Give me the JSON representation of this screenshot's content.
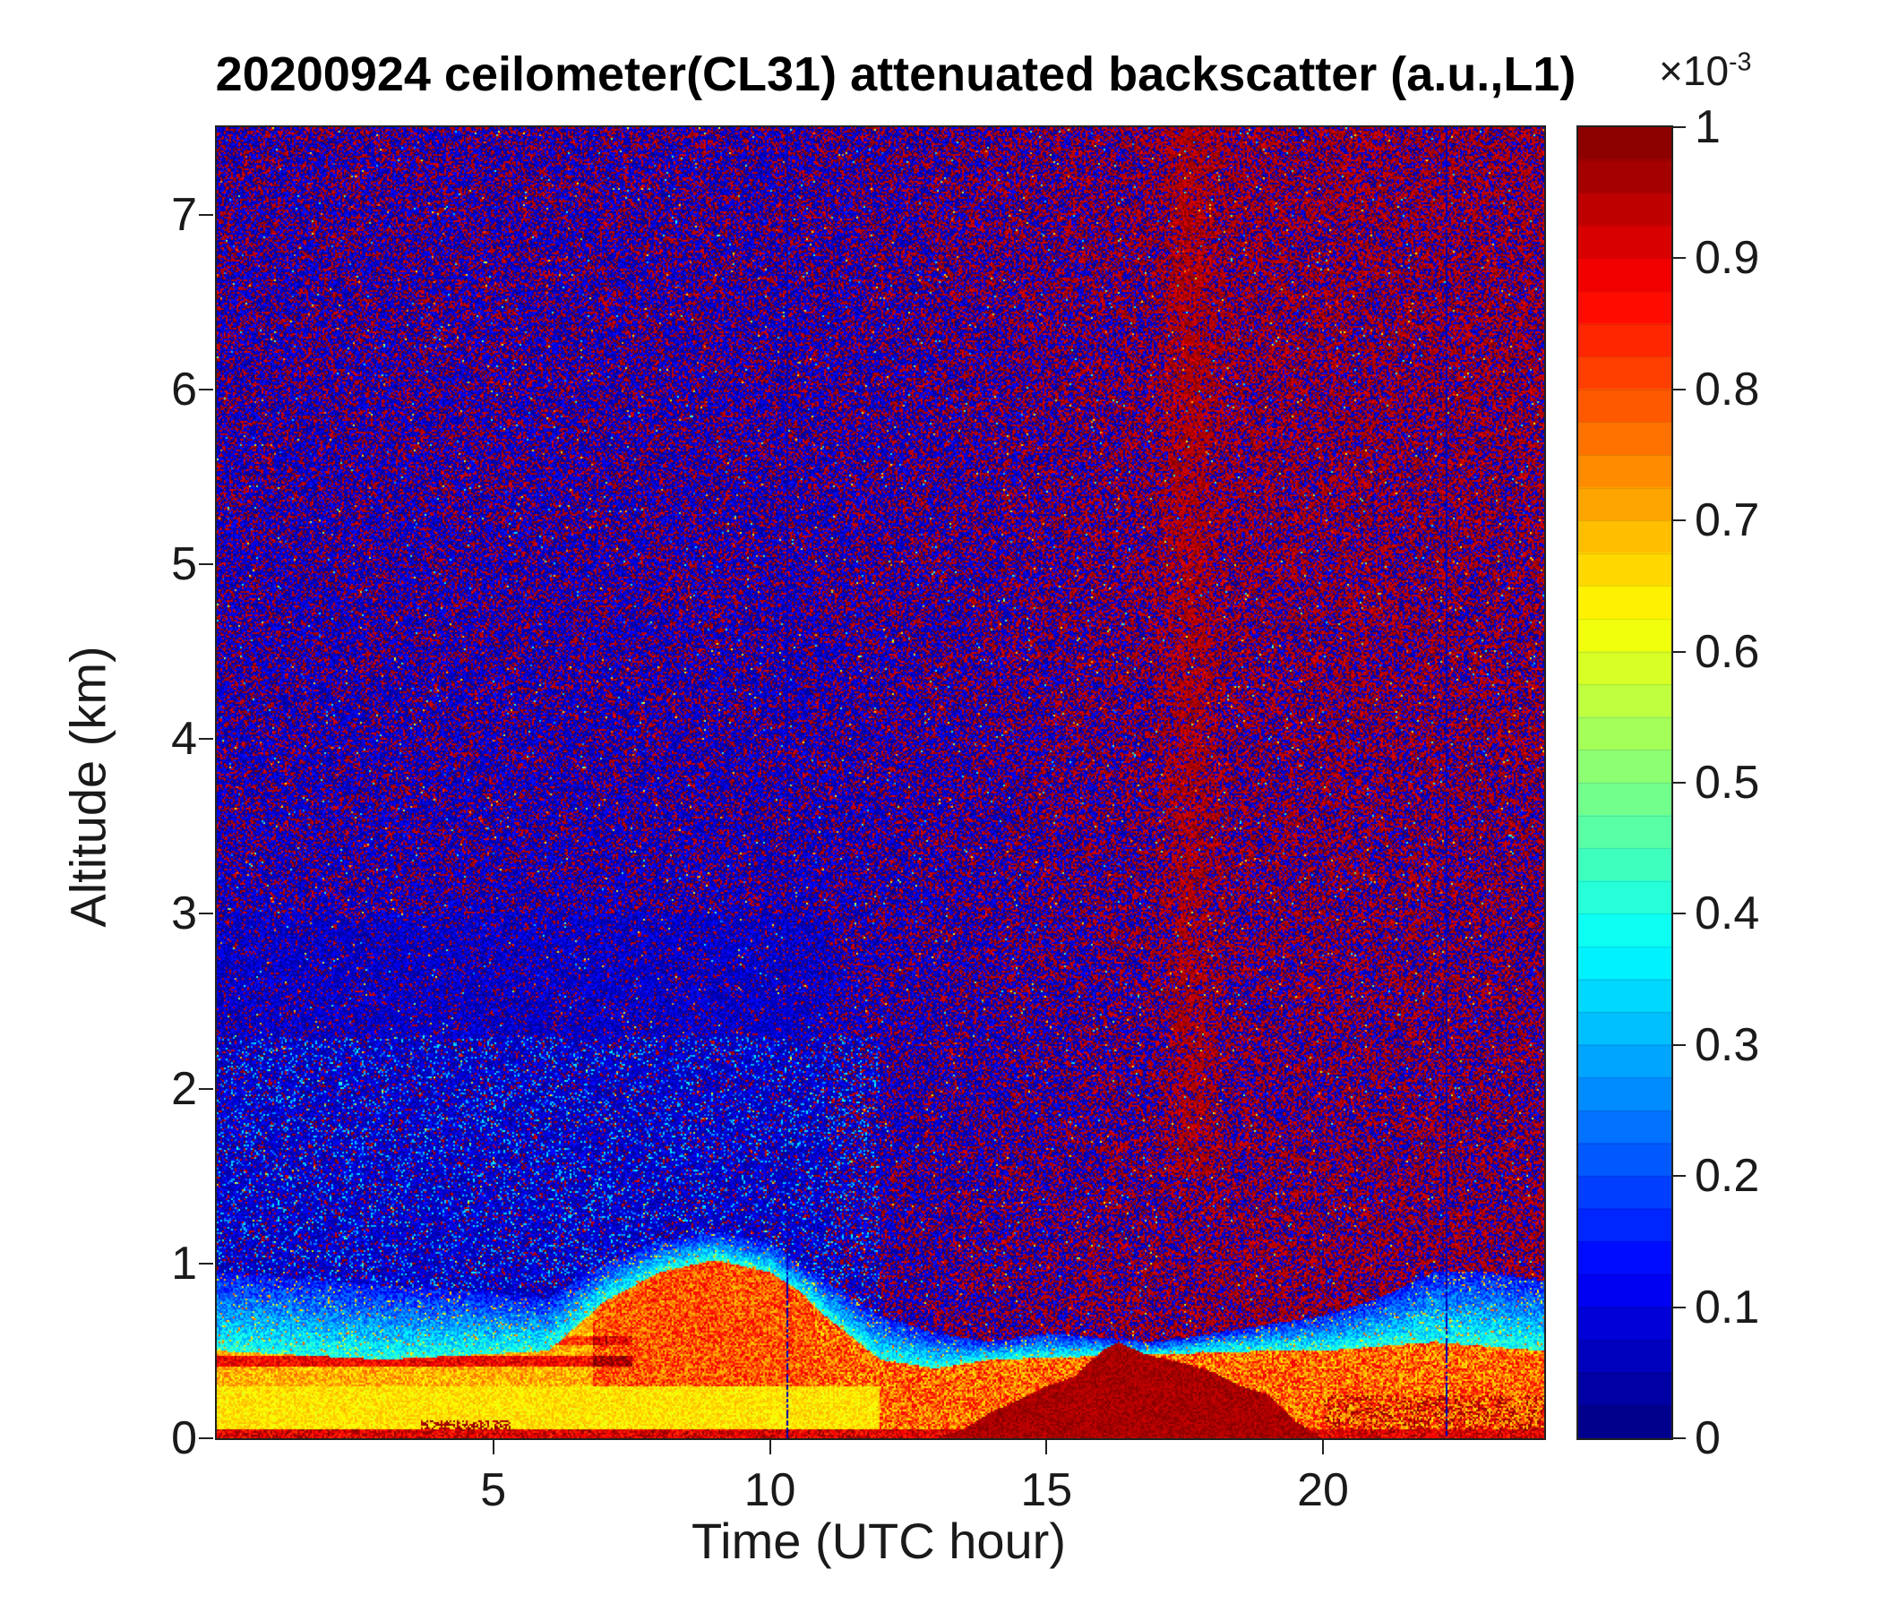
{
  "chart_data": {
    "type": "heatmap",
    "title": "20200924 ceilometer(CL31) attenuated backscatter (a.u.,L1)",
    "xlabel": "Time (UTC hour)",
    "ylabel": "Altitude (km)",
    "x_range": [
      0,
      24
    ],
    "y_range": [
      0,
      7.5
    ],
    "x_ticks": [
      5,
      10,
      15,
      20
    ],
    "y_ticks": [
      0,
      1,
      2,
      3,
      4,
      5,
      6,
      7
    ],
    "grid": false,
    "colorbar": {
      "label_base": "×10",
      "label_exp": "-3",
      "colormap": "jet",
      "value_range": [
        0,
        0.001
      ],
      "ticks": [
        0,
        0.1,
        0.2,
        0.3,
        0.4,
        0.5,
        0.6,
        0.7,
        0.8,
        0.9,
        1
      ],
      "tick_labels": [
        "0",
        "0.1",
        "0.2",
        "0.3",
        "0.4",
        "0.5",
        "0.6",
        "0.7",
        "0.8",
        "0.9",
        "1"
      ],
      "position": "right"
    },
    "layers": {
      "strong_layer_top": {
        "hours": [
          0,
          3,
          6,
          7,
          8,
          9,
          10,
          10.5,
          11,
          12,
          13,
          14,
          19,
          20,
          22,
          24
        ],
        "km": [
          0.5,
          0.45,
          0.5,
          0.78,
          0.95,
          1.02,
          0.95,
          0.85,
          0.7,
          0.45,
          0.4,
          0.45,
          0.5,
          0.5,
          0.55,
          0.5
        ]
      },
      "diffuse_layer_top": {
        "hours": [
          0,
          2,
          4,
          6,
          7,
          8,
          9,
          10,
          11,
          12,
          13,
          14,
          15,
          17,
          19,
          20,
          21,
          22,
          23,
          24
        ],
        "km": [
          0.95,
          0.9,
          0.85,
          0.8,
          1.0,
          1.12,
          1.18,
          1.12,
          0.9,
          0.7,
          0.6,
          0.55,
          0.6,
          0.55,
          0.65,
          0.7,
          0.8,
          0.95,
          0.95,
          0.9
        ]
      },
      "cloud_top": {
        "hours": [
          0,
          13,
          13.5,
          14,
          14.5,
          15,
          15.5,
          16,
          16.3,
          16.8,
          17.2,
          17.6,
          18,
          18.5,
          19,
          19.5,
          20,
          24
        ],
        "km": [
          0,
          0,
          0.05,
          0.15,
          0.22,
          0.3,
          0.35,
          0.5,
          0.55,
          0.48,
          0.45,
          0.42,
          0.38,
          0.3,
          0.25,
          0.1,
          0,
          0
        ]
      },
      "gap_lines_utc": [
        10.33,
        22.22
      ],
      "red_column_utc": 17.6
    },
    "features": [
      "Free troposphere filled with bimodal speckle noise: near-zero (dark blue) and near-maximum (dark red) returns",
      "Red-speckle density increases with altitude and after ~11 UTC; densest in the upper right",
      "Shallow aerosol boundary layer ~0.5 km with strong yellow-orange backscatter before 06 UTC",
      "Boundary layer deepens to ~1.0-1.2 km between 07 and 10 UTC (orange-red plume), cyan diffuse cap above",
      "Strong near-surface dark-red returns (cloud/fog) between ~14 and 19 UTC reaching ~0.5 km",
      "Thin dark vertical data-gap lines near 10.3 and 22.2 UTC",
      "Enhanced dark-red column aloft near 17-18 UTC"
    ]
  }
}
